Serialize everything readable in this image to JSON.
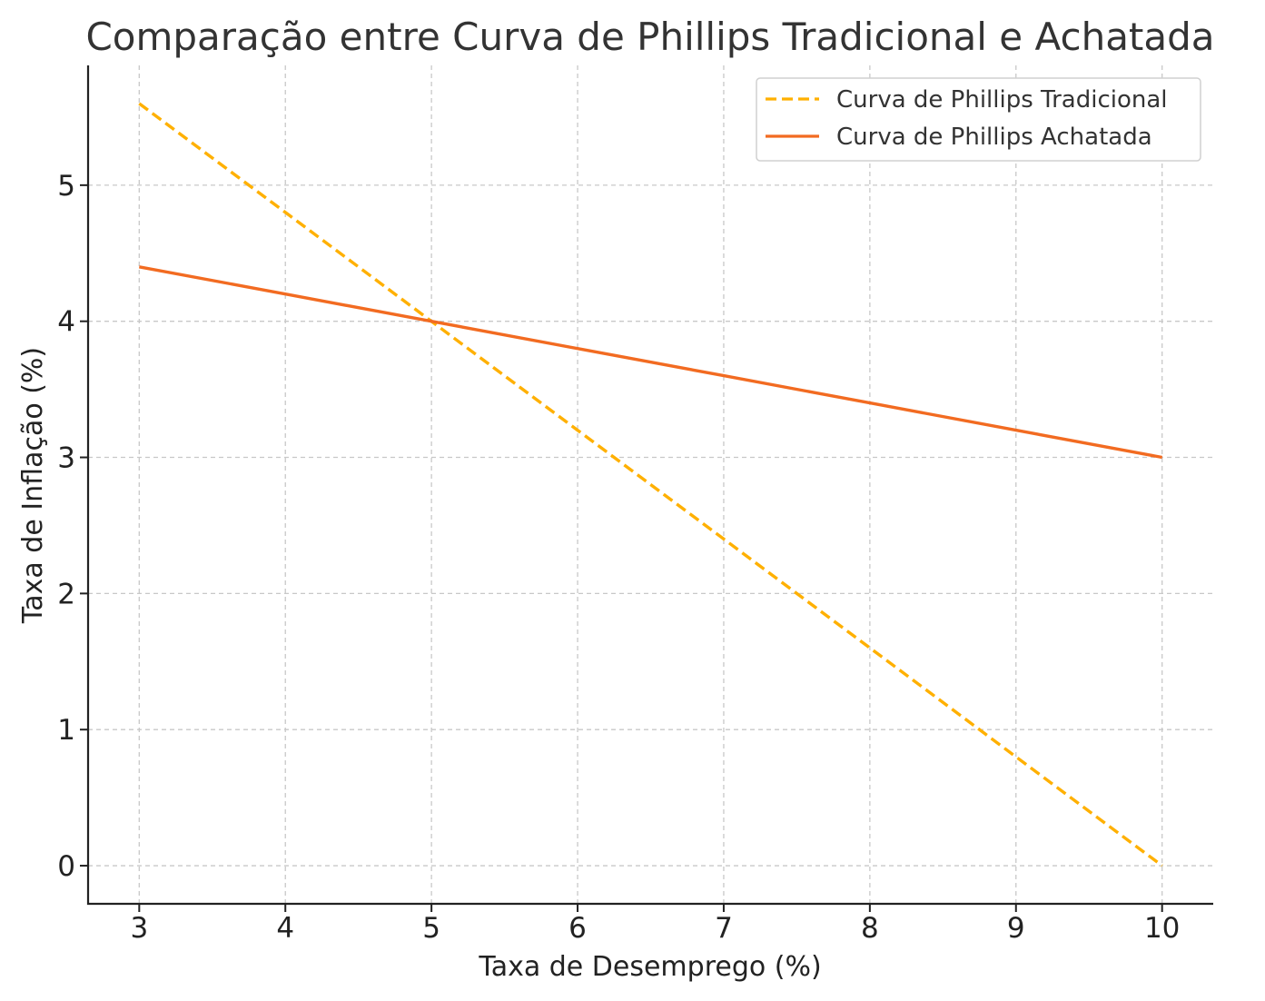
{
  "chart_data": {
    "type": "line",
    "title": "Comparação entre Curva de Phillips Tradicional e Achatada",
    "xlabel": "Taxa de Desemprego (%)",
    "ylabel": "Taxa de Inflação (%)",
    "xlim": [
      2.65,
      10.35
    ],
    "ylim": [
      -0.28,
      5.88
    ],
    "xticks": [
      3,
      4,
      5,
      6,
      7,
      8,
      9,
      10
    ],
    "yticks": [
      0,
      1,
      2,
      3,
      4,
      5
    ],
    "grid": true,
    "legend_position": "top-right",
    "x": [
      3,
      4,
      5,
      6,
      7,
      8,
      9,
      10
    ],
    "series": [
      {
        "name": "Curva de Phillips Tradicional",
        "values": [
          5.6,
          4.8,
          4.0,
          3.2,
          2.4,
          1.6,
          0.8,
          0.0
        ],
        "color": "#FFB000",
        "style": "dashed"
      },
      {
        "name": "Curva de Phillips Achatada",
        "values": [
          4.4,
          4.2,
          4.0,
          3.8,
          3.6,
          3.4,
          3.2,
          3.0
        ],
        "color": "#F26B21",
        "style": "solid"
      }
    ]
  }
}
